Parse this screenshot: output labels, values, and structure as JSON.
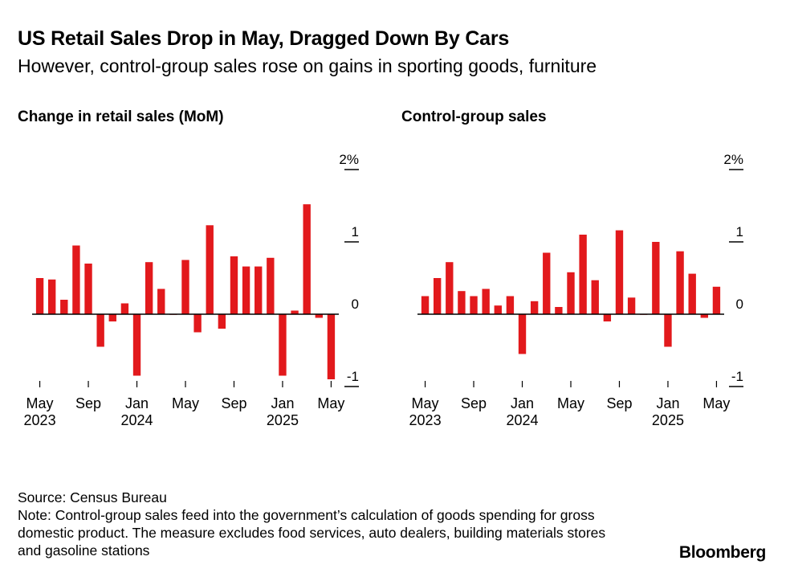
{
  "title": "US Retail Sales Drop in May, Dragged Down By Cars",
  "subtitle": "However, control-group sales rose on gains in sporting goods, furniture",
  "source": "Source: Census Bureau",
  "note": "Note: Control-group sales feed into the government’s calculation of goods spending for gross domestic product. The measure excludes food services, auto dealers, building materials stores and gasoline stations",
  "brand": "Bloomberg",
  "colors": {
    "bar": "#e2191c",
    "axis": "#000000"
  },
  "chart_data": [
    {
      "type": "bar",
      "title": "Change in retail sales (MoM)",
      "x_start": "2023-05",
      "x_end": "2025-05",
      "x_ticks": [
        {
          "index": 0,
          "month": "May",
          "year": "2023"
        },
        {
          "index": 4,
          "month": "Sep",
          "year": ""
        },
        {
          "index": 8,
          "month": "Jan",
          "year": "2024"
        },
        {
          "index": 12,
          "month": "May",
          "year": ""
        },
        {
          "index": 16,
          "month": "Sep",
          "year": ""
        },
        {
          "index": 20,
          "month": "Jan",
          "year": "2025"
        },
        {
          "index": 24,
          "month": "May",
          "year": ""
        }
      ],
      "y_ticks": [
        "2%",
        "1",
        "0",
        "-1"
      ],
      "y_tick_values": [
        2,
        1,
        0,
        -1
      ],
      "ylim": [
        -1.0,
        2.0
      ],
      "values": [
        0.5,
        0.48,
        0.2,
        0.95,
        0.7,
        -0.45,
        -0.1,
        0.15,
        -0.85,
        0.72,
        0.35,
        0.0,
        0.75,
        -0.25,
        1.23,
        -0.2,
        0.8,
        0.66,
        0.66,
        0.78,
        -0.85,
        0.05,
        1.52,
        -0.05,
        -0.9
      ]
    },
    {
      "type": "bar",
      "title": "Control-group sales",
      "x_start": "2023-05",
      "x_end": "2025-05",
      "x_ticks": [
        {
          "index": 0,
          "month": "May",
          "year": "2023"
        },
        {
          "index": 4,
          "month": "Sep",
          "year": ""
        },
        {
          "index": 8,
          "month": "Jan",
          "year": "2024"
        },
        {
          "index": 12,
          "month": "May",
          "year": ""
        },
        {
          "index": 16,
          "month": "Sep",
          "year": ""
        },
        {
          "index": 20,
          "month": "Jan",
          "year": "2025"
        },
        {
          "index": 24,
          "month": "May",
          "year": ""
        }
      ],
      "y_ticks": [
        "2%",
        "1",
        "0",
        "-1"
      ],
      "y_tick_values": [
        2,
        1,
        0,
        -1
      ],
      "ylim": [
        -1.0,
        2.0
      ],
      "values": [
        0.25,
        0.5,
        0.72,
        0.32,
        0.25,
        0.35,
        0.12,
        0.25,
        -0.55,
        0.18,
        0.85,
        0.1,
        0.58,
        1.1,
        0.47,
        -0.1,
        1.16,
        0.23,
        0.0,
        1.0,
        -0.45,
        0.87,
        0.56,
        -0.05,
        0.38
      ]
    }
  ]
}
